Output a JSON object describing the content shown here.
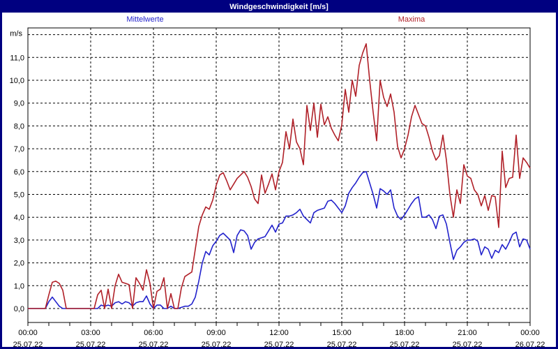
{
  "window": {
    "title": "Windgeschwindigkeit [m/s]"
  },
  "colors": {
    "titlebar_bg": "#000080",
    "titlebar_text": "#ffffff",
    "window_border": "#000080",
    "grid": "#000000",
    "axis_text": "#000000",
    "mean_series": "#2222cc",
    "max_series": "#b02028",
    "background": "#ffffff"
  },
  "legend": {
    "mean_label": "Mittelwerte",
    "max_label": "Maxima"
  },
  "chart_data": {
    "type": "line",
    "title": "Windgeschwindigkeit [m/s]",
    "y_unit": "m/s",
    "grid": "dashed",
    "legend_position": "above-chart",
    "x_range_hours": [
      0,
      24
    ],
    "ylim": [
      -0.6,
      12.3
    ],
    "sample_interval_minutes": 10,
    "x_gridline_hours": [
      3,
      6,
      9,
      12,
      15,
      18,
      21
    ],
    "y_gridline_values": [
      0,
      1,
      2,
      3,
      4,
      5,
      6,
      7,
      8,
      9,
      10,
      11,
      12
    ],
    "y_ticks": [
      {
        "value": 0,
        "label": "0,0"
      },
      {
        "value": 1,
        "label": "1,0"
      },
      {
        "value": 2,
        "label": "2,0"
      },
      {
        "value": 3,
        "label": "3,0"
      },
      {
        "value": 4,
        "label": "4,0"
      },
      {
        "value": 5,
        "label": "5,0"
      },
      {
        "value": 6,
        "label": "6,0"
      },
      {
        "value": 7,
        "label": "7,0"
      },
      {
        "value": 8,
        "label": "8,0"
      },
      {
        "value": 9,
        "label": "9,0"
      },
      {
        "value": 10,
        "label": "10,0"
      },
      {
        "value": 11,
        "label": "11,0"
      }
    ],
    "x_ticks": [
      {
        "hour": 0,
        "time": "00:00",
        "date": "25.07.22"
      },
      {
        "hour": 3,
        "time": "03:00",
        "date": "25.07.22"
      },
      {
        "hour": 6,
        "time": "06:00",
        "date": "25.07.22"
      },
      {
        "hour": 9,
        "time": "09:00",
        "date": "25.07.22"
      },
      {
        "hour": 12,
        "time": "12:00",
        "date": "25.07.22"
      },
      {
        "hour": 15,
        "time": "15:00",
        "date": "25.07.22"
      },
      {
        "hour": 18,
        "time": "18:00",
        "date": "25.07.22"
      },
      {
        "hour": 21,
        "time": "21:00",
        "date": "25.07.22"
      },
      {
        "hour": 24,
        "time": "00:00",
        "date": "26.07.22"
      }
    ],
    "series": [
      {
        "key": "mittelwerte",
        "name": "Mittelwerte",
        "color": "#2222cc",
        "values": [
          0,
          0,
          0,
          0,
          0,
          0,
          0.3,
          0.5,
          0.3,
          0.1,
          0,
          0,
          0,
          0,
          0,
          0,
          0,
          0,
          0,
          0,
          0,
          0.15,
          0.1,
          0.15,
          0.1,
          0.25,
          0.3,
          0.2,
          0.3,
          0.25,
          0.1,
          0.25,
          0.3,
          0.3,
          0.55,
          0.2,
          0,
          0.15,
          0.15,
          0,
          0,
          0.1,
          0,
          0,
          0.05,
          0.1,
          0.1,
          0.2,
          0.5,
          1.2,
          2.0,
          2.5,
          2.35,
          2.75,
          2.95,
          3.2,
          3.3,
          3.15,
          3.0,
          2.45,
          3.2,
          3.45,
          3.4,
          3.2,
          2.6,
          2.9,
          3.05,
          3.1,
          3.15,
          3.4,
          3.65,
          3.35,
          3.7,
          3.75,
          4.05,
          4.05,
          4.1,
          4.2,
          4.35,
          4.05,
          3.9,
          3.75,
          4.2,
          4.3,
          4.35,
          4.4,
          4.7,
          4.75,
          4.6,
          4.4,
          4.2,
          4.5,
          5.05,
          5.3,
          5.5,
          5.75,
          5.95,
          6.0,
          5.5,
          5.0,
          4.4,
          5.25,
          5.15,
          5.0,
          5.2,
          4.4,
          4.05,
          3.9,
          4.1,
          4.35,
          4.6,
          4.8,
          4.9,
          4.0,
          4.0,
          4.1,
          3.9,
          3.5,
          4.05,
          4.1,
          3.7,
          2.9,
          2.15,
          2.55,
          2.7,
          2.9,
          3.0,
          3.0,
          3.05,
          2.95,
          2.35,
          2.7,
          2.6,
          2.2,
          2.55,
          2.45,
          2.8,
          2.6,
          2.9,
          3.25,
          3.35,
          2.7,
          3.05,
          3.0,
          2.6
        ]
      },
      {
        "key": "maxima",
        "name": "Maxima",
        "color": "#b02028",
        "values": [
          0,
          0,
          0,
          0,
          0,
          0,
          0.6,
          1.15,
          1.2,
          1.1,
          0.8,
          0,
          0,
          0,
          0,
          0,
          0,
          0,
          0,
          0,
          0.6,
          0.8,
          0,
          0.85,
          0,
          1.0,
          1.5,
          1.15,
          1.1,
          1.05,
          0,
          1.35,
          1.1,
          0.8,
          1.7,
          1.1,
          0,
          0.75,
          0.85,
          1.35,
          0,
          0.65,
          0,
          0,
          0.9,
          1.4,
          1.5,
          1.6,
          2.6,
          3.6,
          4.1,
          4.45,
          4.35,
          4.75,
          5.4,
          5.85,
          5.95,
          5.6,
          5.2,
          5.45,
          5.7,
          5.85,
          6.0,
          5.75,
          5.35,
          4.8,
          4.6,
          5.85,
          5.05,
          5.45,
          5.9,
          5.2,
          6.0,
          6.4,
          7.75,
          7.0,
          8.3,
          7.3,
          7.0,
          6.3,
          8.9,
          7.8,
          9.0,
          7.5,
          8.95,
          8.05,
          8.4,
          7.9,
          7.6,
          7.35,
          8.05,
          9.6,
          8.6,
          10.0,
          9.3,
          10.65,
          11.2,
          11.6,
          10.0,
          8.6,
          7.35,
          10.0,
          9.25,
          8.85,
          9.4,
          8.6,
          7.1,
          6.6,
          7.0,
          7.6,
          8.4,
          8.9,
          8.5,
          8.1,
          8.0,
          7.5,
          6.9,
          6.5,
          6.7,
          7.6,
          6.5,
          5.0,
          4.0,
          5.2,
          4.6,
          6.3,
          5.8,
          5.7,
          5.2,
          5.0,
          4.5,
          4.95,
          4.3,
          4.95,
          4.9,
          3.55,
          6.9,
          5.3,
          5.7,
          5.75,
          7.6,
          5.7,
          6.6,
          6.4,
          6.15
        ]
      }
    ]
  }
}
